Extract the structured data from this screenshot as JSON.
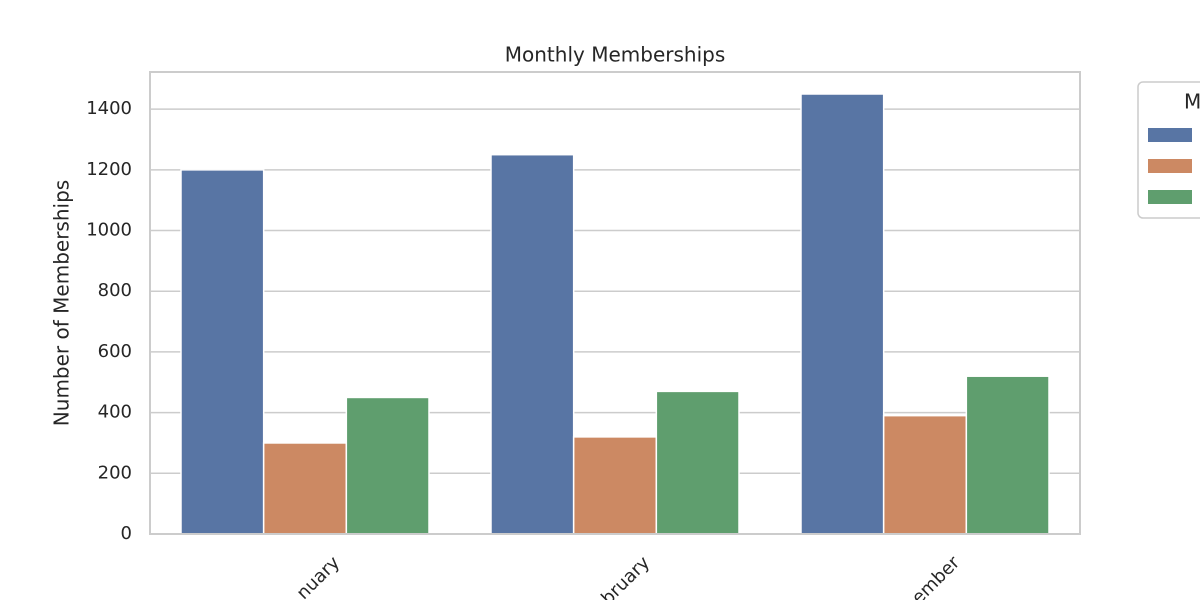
{
  "chart_data": {
    "type": "bar",
    "title": "Monthly Memberships",
    "y_label": "Number of Memberships",
    "categories": [
      "nuary",
      "bruary",
      "ember"
    ],
    "series": [
      {
        "color": "#5875a4",
        "values": [
          1200,
          1250,
          1450
        ]
      },
      {
        "color": "#cc8963",
        "values": [
          300,
          320,
          390
        ]
      },
      {
        "color": "#5f9e6e",
        "values": [
          450,
          470,
          520
        ]
      }
    ],
    "legend_title": "M",
    "ylim": [
      0,
      1522.5
    ],
    "yticks": [
      0,
      200,
      400,
      600,
      800,
      1000,
      1200,
      1400
    ],
    "grid": true
  }
}
